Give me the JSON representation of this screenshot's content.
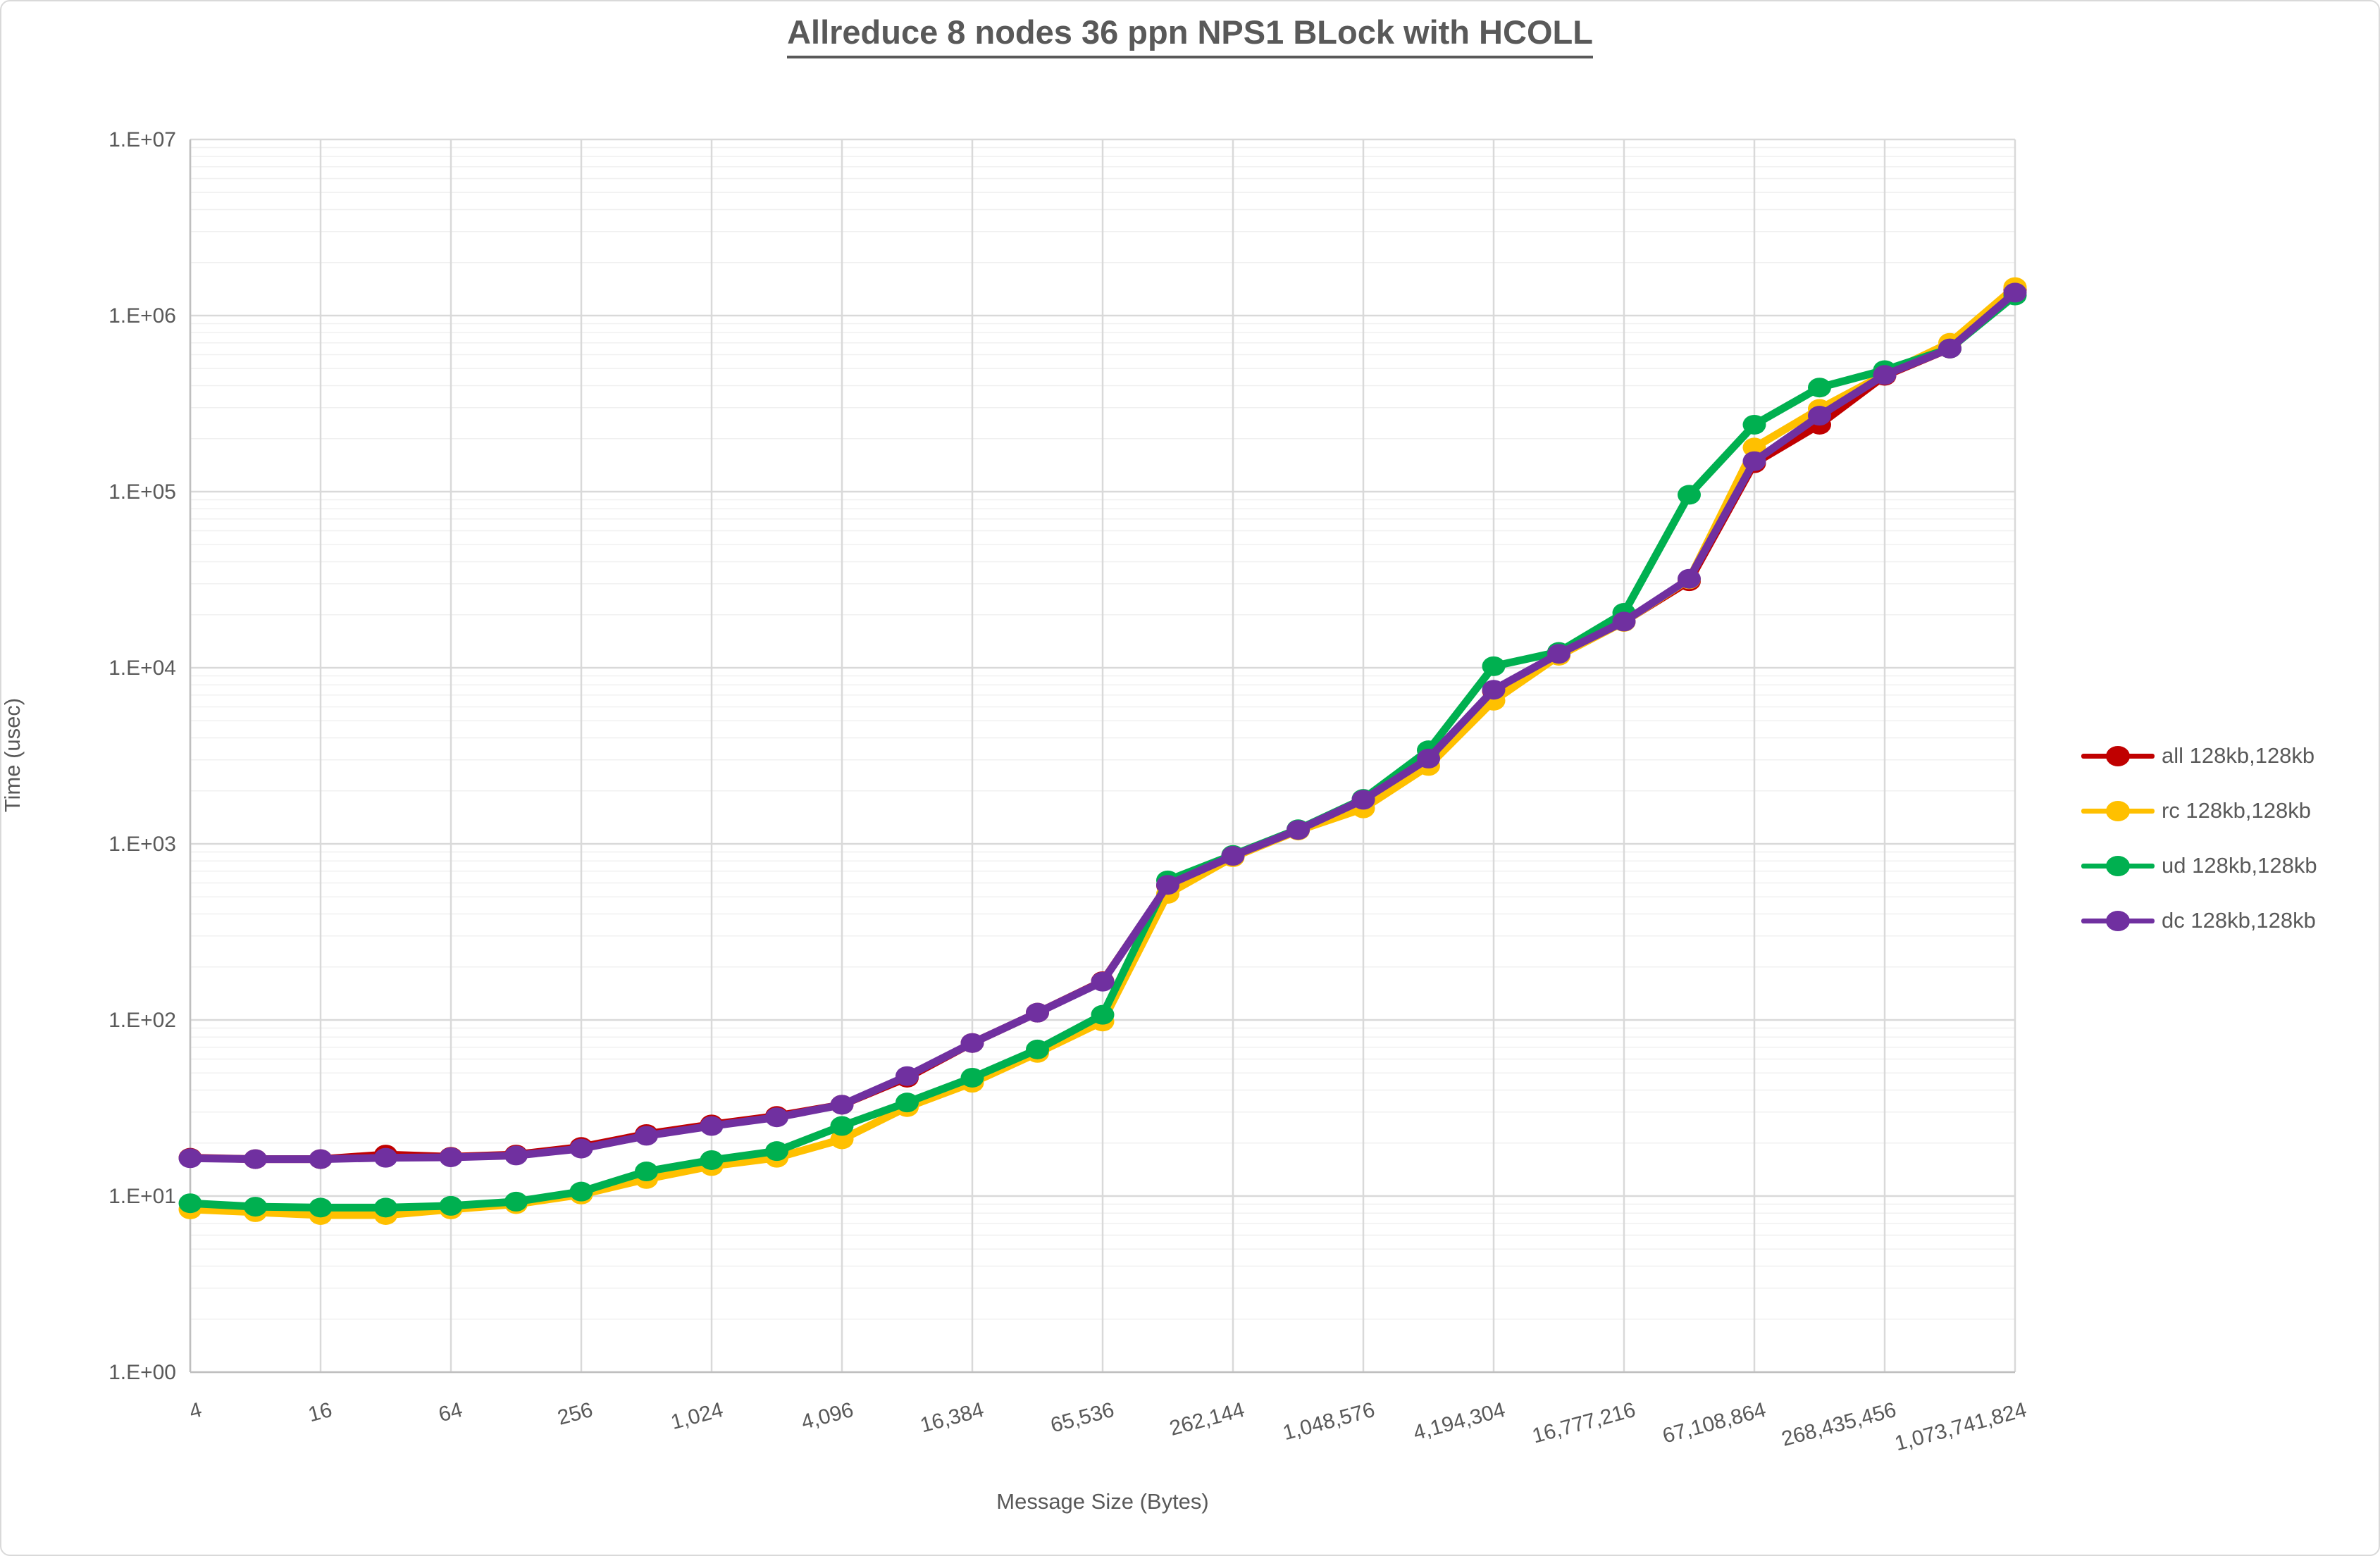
{
  "window": {
    "background_color": "#FFFFFF",
    "border_color": "#D9D9D9"
  },
  "chart": {
    "title": "Allreduce 8 nodes 36 ppn NPS1 BLock with HCOLL",
    "x_axis_title": "Message Size (Bytes)",
    "y_axis_title": "Time (usec)",
    "text_color": "#595959",
    "major_gridline_color": "#D9D9D9",
    "minor_gridline_color": "#F0F0F0",
    "axis_line_color": "#BFBFBF"
  },
  "chart_data": {
    "type": "line",
    "title": "Allreduce 8 nodes 36 ppn NPS1 BLock with HCOLL",
    "xlabel": "Message Size (Bytes)",
    "ylabel": "Time (usec)",
    "x_scale": "log2-category",
    "y_scale": "log10",
    "ylim": [
      1,
      10000000
    ],
    "grid": "major+minor (log)",
    "legend_position": "right-middle",
    "y_tick_labels": [
      "1.E+00",
      "1.E+01",
      "1.E+02",
      "1.E+03",
      "1.E+04",
      "1.E+05",
      "1.E+06",
      "1.E+07"
    ],
    "x": [
      4,
      8,
      16,
      32,
      64,
      128,
      256,
      512,
      1024,
      2048,
      4096,
      8192,
      16384,
      32768,
      65536,
      131072,
      262144,
      524288,
      1048576,
      2097152,
      4194304,
      8388608,
      16777216,
      33554432,
      67108864,
      134217728,
      268435456,
      536870912,
      1073741824
    ],
    "x_tick_labels": [
      "4",
      "16",
      "64",
      "256",
      "1,024",
      "4,096",
      "16,384",
      "65,536",
      "262,144",
      "1,048,576",
      "4,194,304",
      "16,777,216",
      "67,108,864",
      "268,435,456",
      "1,073,741,824"
    ],
    "series": [
      {
        "name": "all 128kb,128kb",
        "color": "#C00000",
        "values": [
          16.5,
          16.2,
          16.2,
          17.2,
          16.7,
          17.2,
          19,
          22.5,
          25.5,
          28.5,
          33,
          47,
          74,
          110,
          166,
          580,
          855,
          1200,
          1780,
          3050,
          7400,
          11800,
          18300,
          31000,
          145000,
          240000,
          455000,
          650000,
          1400000
        ]
      },
      {
        "name": "rc 128kb,128kb",
        "color": "#FFC000",
        "values": [
          8.4,
          8.1,
          7.8,
          7.8,
          8.4,
          9.0,
          10.2,
          12.5,
          14.8,
          16.5,
          21,
          32,
          44,
          65,
          98,
          520,
          840,
          1190,
          1590,
          2770,
          6500,
          11700,
          18200,
          31800,
          178000,
          295000,
          465000,
          700000,
          1450000
        ]
      },
      {
        "name": "ud 128kb,128kb",
        "color": "#00B050",
        "values": [
          9.1,
          8.7,
          8.6,
          8.6,
          8.8,
          9.3,
          10.6,
          13.8,
          16,
          18,
          25,
          34,
          47,
          68,
          107,
          620,
          865,
          1210,
          1800,
          3400,
          10200,
          12300,
          20500,
          96000,
          240000,
          390000,
          490000,
          650000,
          1300000
        ]
      },
      {
        "name": "dc 128kb,128kb",
        "color": "#7030A0",
        "values": [
          16.4,
          16.2,
          16.2,
          16.5,
          16.6,
          17.0,
          18.6,
          22,
          25,
          28,
          33,
          48,
          74,
          110,
          165,
          585,
          855,
          1200,
          1780,
          3050,
          7500,
          12000,
          18300,
          32000,
          149000,
          270000,
          460000,
          650000,
          1350000
        ]
      }
    ]
  }
}
